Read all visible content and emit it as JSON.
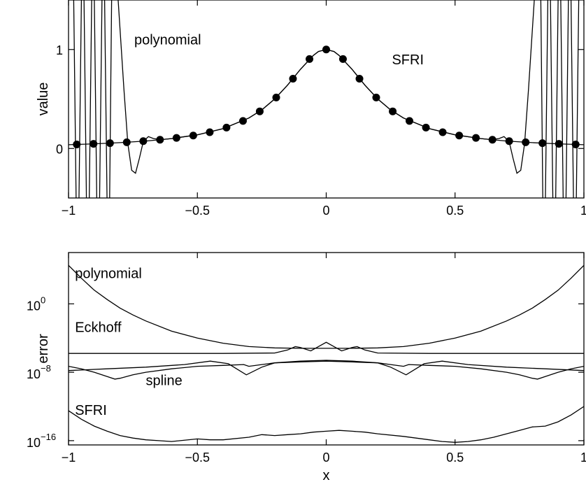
{
  "chart_data": [
    {
      "type": "line",
      "xlabel": "",
      "ylabel": "value",
      "xlim": [
        -1,
        1
      ],
      "ylim": [
        -0.5,
        1.5
      ],
      "xticks": [
        -1,
        -0.5,
        0,
        0.5,
        1
      ],
      "xtick_labels": [
        "−1",
        "−0.5",
        "0",
        "0.5",
        "1"
      ],
      "yticks": [
        0,
        1
      ],
      "ytick_labels": [
        "0",
        "1"
      ],
      "annotations": [
        {
          "id": "polynomial",
          "text": "polynomial",
          "x": -0.745,
          "y": 1.05
        },
        {
          "id": "sfri",
          "text": "SFRI",
          "x": 0.255,
          "y": 0.85
        }
      ],
      "series": [
        {
          "id": "sfri-samples",
          "style": "markers",
          "x": [
            -0.968,
            -0.903,
            -0.839,
            -0.774,
            -0.71,
            -0.645,
            -0.581,
            -0.516,
            -0.452,
            -0.387,
            -0.323,
            -0.258,
            -0.194,
            -0.129,
            -0.065,
            0.0,
            0.065,
            0.129,
            0.194,
            0.258,
            0.323,
            0.387,
            0.452,
            0.516,
            0.581,
            0.645,
            0.71,
            0.774,
            0.839,
            0.903,
            0.968
          ],
          "values": [
            0.041,
            0.047,
            0.054,
            0.063,
            0.074,
            0.088,
            0.107,
            0.131,
            0.164,
            0.211,
            0.278,
            0.375,
            0.515,
            0.705,
            0.904,
            1.0,
            0.904,
            0.705,
            0.515,
            0.375,
            0.278,
            0.211,
            0.164,
            0.131,
            0.107,
            0.088,
            0.074,
            0.063,
            0.054,
            0.047,
            0.041
          ]
        },
        {
          "id": "sfri-curve",
          "style": "line",
          "x": [
            -1.0,
            -0.9,
            -0.8,
            -0.7,
            -0.6,
            -0.5,
            -0.4,
            -0.3,
            -0.25,
            -0.2,
            -0.15,
            -0.1,
            -0.05,
            -0.03,
            0.0,
            0.03,
            0.05,
            0.1,
            0.15,
            0.2,
            0.25,
            0.3,
            0.4,
            0.5,
            0.6,
            0.7,
            0.8,
            0.9,
            1.0
          ],
          "values": [
            0.038,
            0.047,
            0.059,
            0.075,
            0.1,
            0.138,
            0.2,
            0.308,
            0.39,
            0.5,
            0.64,
            0.8,
            0.94,
            0.98,
            1.0,
            0.98,
            0.94,
            0.8,
            0.64,
            0.5,
            0.39,
            0.308,
            0.2,
            0.138,
            0.1,
            0.075,
            0.059,
            0.047,
            0.038
          ]
        },
        {
          "id": "polynomial-curve",
          "style": "line",
          "x": [
            -0.985,
            -0.965,
            -0.945,
            -0.925,
            -0.905,
            -0.885,
            -0.865,
            -0.845,
            -0.83,
            -0.815,
            -0.8,
            -0.785,
            -0.77,
            -0.755,
            -0.74,
            -0.725,
            -0.71,
            -0.69,
            -0.67,
            -0.64,
            -0.6,
            -0.5,
            -0.4,
            -0.3,
            -0.25,
            -0.2,
            -0.15,
            -0.1,
            -0.05,
            -0.03,
            0.0,
            0.03,
            0.05,
            0.1,
            0.15,
            0.2,
            0.25,
            0.3,
            0.4,
            0.5,
            0.6,
            0.64,
            0.67,
            0.69,
            0.71,
            0.725,
            0.74,
            0.755,
            0.77,
            0.785,
            0.8,
            0.815,
            0.83,
            0.845,
            0.865,
            0.885,
            0.905,
            0.925,
            0.945,
            0.965,
            0.985
          ],
          "values": [
            2.6,
            -1.7,
            2.6,
            -1.7,
            2.6,
            -1.7,
            2.6,
            -1.7,
            2.2,
            1.8,
            1.2,
            0.6,
            0.05,
            -0.22,
            -0.25,
            -0.1,
            0.07,
            0.12,
            0.1,
            0.09,
            0.1,
            0.138,
            0.2,
            0.308,
            0.39,
            0.5,
            0.64,
            0.8,
            0.94,
            0.98,
            1.0,
            0.98,
            0.94,
            0.8,
            0.64,
            0.5,
            0.39,
            0.308,
            0.2,
            0.138,
            0.1,
            0.09,
            0.1,
            0.12,
            0.07,
            -0.1,
            -0.25,
            -0.22,
            0.05,
            0.6,
            1.2,
            1.8,
            2.2,
            -1.7,
            2.6,
            -1.7,
            2.6,
            -1.7,
            2.6,
            -1.7,
            2.6
          ]
        }
      ]
    },
    {
      "type": "line",
      "xlabel": "x",
      "ylabel": "error",
      "yscale": "log",
      "xlim": [
        -1,
        1
      ],
      "ylim_log10": [
        -16.5,
        6
      ],
      "xticks": [
        -1,
        -0.5,
        0,
        0.5,
        1
      ],
      "xtick_labels": [
        "−1",
        "−0.5",
        "0",
        "0.5",
        "1"
      ],
      "yticks_log10": [
        0,
        -8,
        -16
      ],
      "ytick_labels": [
        {
          "base": "10",
          "exp": "0"
        },
        {
          "base": "10",
          "exp": "−8"
        },
        {
          "base": "10",
          "exp": "−16"
        }
      ],
      "annotations": [
        {
          "id": "polynomial",
          "text": "polynomial",
          "x": -0.975,
          "y_log10": 3.0
        },
        {
          "id": "eckhoff",
          "text": "Eckhoff",
          "x": -0.975,
          "y_log10": -3.3
        },
        {
          "id": "spline",
          "text": "spline",
          "x": -0.7,
          "y_log10": -9.5
        },
        {
          "id": "sfri",
          "text": "SFRI",
          "x": -0.975,
          "y_log10": -13.0
        }
      ],
      "series": [
        {
          "id": "polynomial",
          "x": [
            -1.0,
            -0.95,
            -0.9,
            -0.85,
            -0.8,
            -0.75,
            -0.7,
            -0.6,
            -0.5,
            -0.4,
            -0.3,
            -0.2,
            -0.1,
            0.0,
            0.1,
            0.2,
            0.3,
            0.4,
            0.5,
            0.6,
            0.7,
            0.75,
            0.8,
            0.85,
            0.9,
            0.95,
            1.0
          ],
          "values": [
            4.5,
            3.0,
            1.6,
            0.5,
            -0.5,
            -1.3,
            -2.0,
            -3.2,
            -4.0,
            -4.6,
            -5.0,
            -5.15,
            -5.2,
            -5.2,
            -5.2,
            -5.15,
            -5.0,
            -4.6,
            -4.0,
            -3.2,
            -2.0,
            -1.3,
            -0.5,
            0.5,
            1.6,
            3.0,
            4.5
          ]
        },
        {
          "id": "eckhoff",
          "x": [
            -1.0,
            -0.8,
            -0.6,
            -0.4,
            -0.2,
            -0.15,
            -0.12,
            -0.1,
            -0.06,
            -0.03,
            0.0,
            0.03,
            0.06,
            0.1,
            0.12,
            0.15,
            0.2,
            0.4,
            0.6,
            0.8,
            1.0
          ],
          "values": [
            -5.8,
            -5.8,
            -5.8,
            -5.8,
            -5.75,
            -5.4,
            -5.0,
            -5.1,
            -5.5,
            -5.0,
            -4.5,
            -5.0,
            -5.5,
            -5.1,
            -5.0,
            -5.4,
            -5.75,
            -5.8,
            -5.8,
            -5.8,
            -5.8
          ]
        },
        {
          "id": "spline",
          "x": [
            -1.0,
            -0.95,
            -0.9,
            -0.85,
            -0.82,
            -0.8,
            -0.75,
            -0.7,
            -0.6,
            -0.5,
            -0.4,
            -0.32,
            -0.3,
            -0.25,
            -0.2,
            -0.1,
            0.0,
            0.1,
            0.2,
            0.25,
            0.3,
            0.32,
            0.4,
            0.5,
            0.6,
            0.7,
            0.75,
            0.8,
            0.82,
            0.85,
            0.9,
            0.95,
            1.0
          ],
          "values": [
            -7.3,
            -7.6,
            -8.0,
            -8.5,
            -8.8,
            -8.7,
            -8.3,
            -8.0,
            -7.6,
            -7.3,
            -7.2,
            -7.1,
            -7.3,
            -7.1,
            -6.9,
            -6.8,
            -6.7,
            -6.8,
            -6.9,
            -7.1,
            -7.3,
            -7.1,
            -7.2,
            -7.3,
            -7.6,
            -8.0,
            -8.3,
            -8.7,
            -8.8,
            -8.5,
            -8.0,
            -7.6,
            -7.3
          ]
        },
        {
          "id": "spline-crossing",
          "x": [
            -1.0,
            -0.85,
            -0.7,
            -0.55,
            -0.45,
            -0.38,
            -0.31,
            -0.25,
            -0.2,
            -0.1,
            0.0,
            0.1,
            0.2,
            0.25,
            0.31,
            0.38,
            0.45,
            0.55,
            0.7,
            0.85,
            1.0
          ],
          "values": [
            -7.8,
            -7.6,
            -7.4,
            -7.1,
            -6.7,
            -7.0,
            -8.3,
            -7.4,
            -6.9,
            -6.7,
            -6.6,
            -6.7,
            -6.9,
            -7.4,
            -8.3,
            -7.0,
            -6.7,
            -7.1,
            -7.4,
            -7.6,
            -7.8
          ]
        },
        {
          "id": "sfri",
          "x": [
            -1.0,
            -0.95,
            -0.9,
            -0.85,
            -0.8,
            -0.75,
            -0.7,
            -0.65,
            -0.6,
            -0.5,
            -0.45,
            -0.4,
            -0.3,
            -0.25,
            -0.2,
            -0.15,
            -0.1,
            -0.05,
            0.0,
            0.05,
            0.1,
            0.15,
            0.2,
            0.3,
            0.4,
            0.45,
            0.5,
            0.55,
            0.6,
            0.65,
            0.7,
            0.75,
            0.8,
            0.85,
            0.9,
            0.95,
            1.0
          ],
          "values": [
            -12.5,
            -13.5,
            -14.3,
            -14.9,
            -15.4,
            -15.7,
            -15.9,
            -16.0,
            -16.1,
            -15.8,
            -15.9,
            -15.9,
            -15.6,
            -15.3,
            -15.4,
            -15.3,
            -15.2,
            -15.0,
            -14.9,
            -14.8,
            -14.9,
            -15.0,
            -15.2,
            -15.5,
            -15.9,
            -16.1,
            -16.2,
            -16.1,
            -15.9,
            -15.6,
            -15.2,
            -14.8,
            -14.4,
            -14.3,
            -13.8,
            -13.0,
            -12.0
          ]
        }
      ]
    }
  ]
}
